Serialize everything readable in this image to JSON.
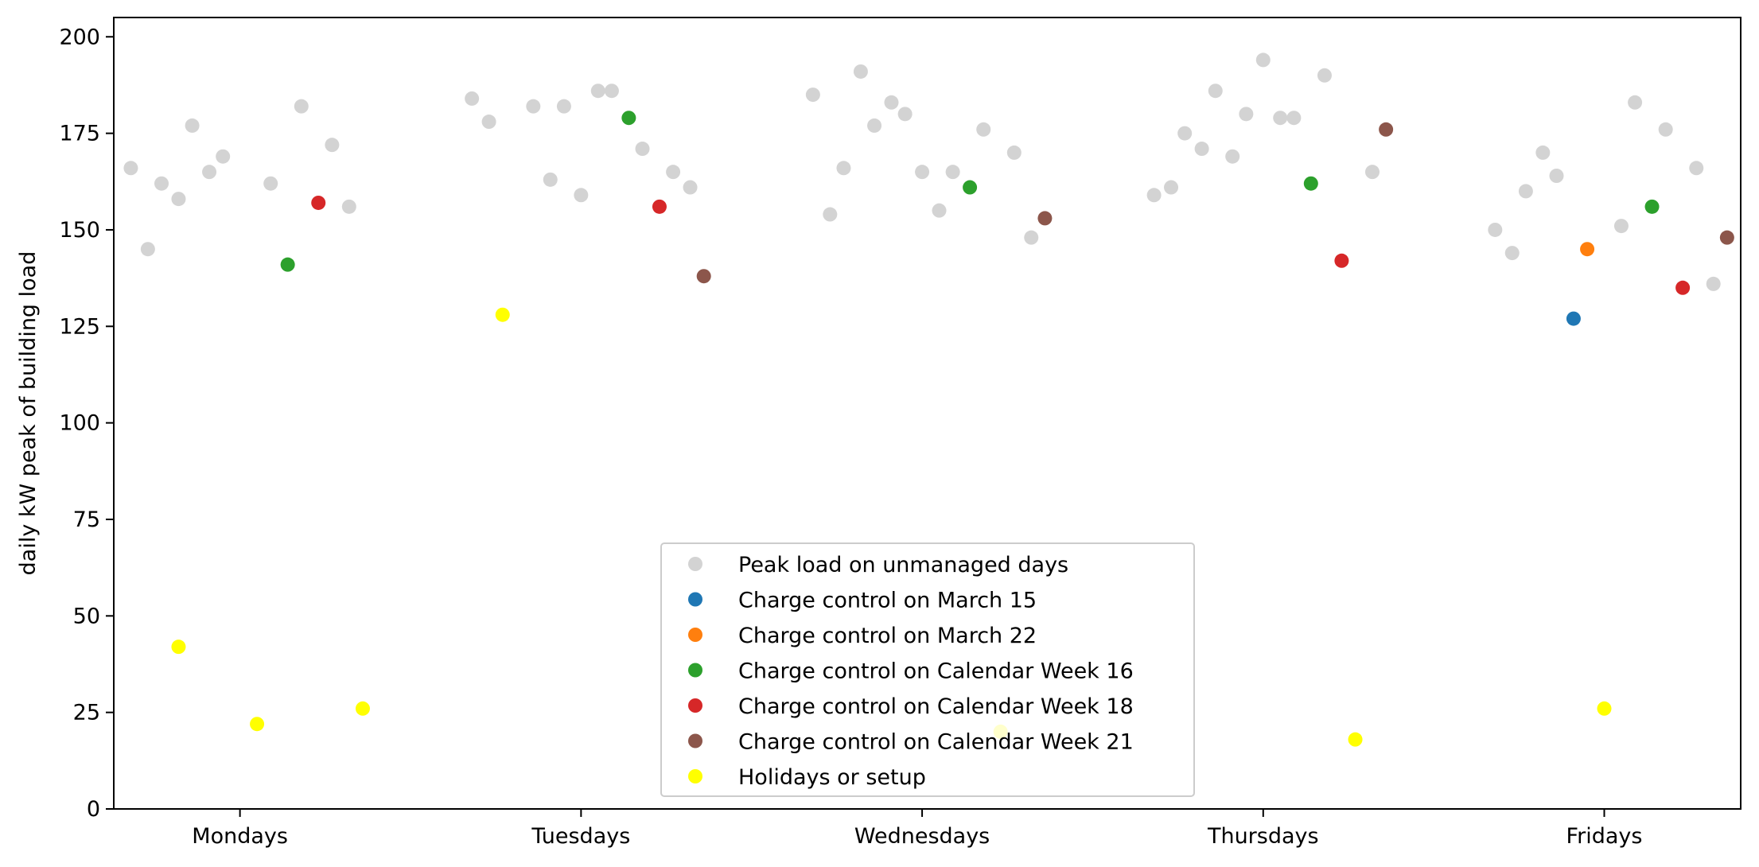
{
  "chart_data": {
    "type": "scatter",
    "title": "",
    "xlabel": "",
    "ylabel": "daily kW peak of building load",
    "ylim": [
      0,
      205
    ],
    "yticks": [
      0,
      25,
      50,
      75,
      100,
      125,
      150,
      175,
      200
    ],
    "categories": [
      "Mondays",
      "Tuesdays",
      "Wednesdays",
      "Thursdays",
      "Fridays"
    ],
    "xlim": [
      -0.37,
      4.4
    ],
    "grid": false,
    "legend_position": "bottom-center",
    "series": [
      {
        "name": "Peak load on unmanaged days",
        "color": "#d3d3d3",
        "points": [
          [
            -0.32,
            166
          ],
          [
            -0.27,
            145
          ],
          [
            -0.23,
            162
          ],
          [
            -0.18,
            158
          ],
          [
            -0.14,
            177
          ],
          [
            -0.09,
            165
          ],
          [
            -0.05,
            169
          ],
          [
            0.09,
            162
          ],
          [
            0.18,
            182
          ],
          [
            0.27,
            172
          ],
          [
            0.32,
            156
          ],
          [
            0.68,
            184
          ],
          [
            0.73,
            178
          ],
          [
            0.86,
            182
          ],
          [
            0.91,
            163
          ],
          [
            0.95,
            182
          ],
          [
            1.0,
            159
          ],
          [
            1.05,
            186
          ],
          [
            1.09,
            186
          ],
          [
            1.18,
            171
          ],
          [
            1.27,
            165
          ],
          [
            1.32,
            161
          ],
          [
            1.68,
            185
          ],
          [
            1.73,
            154
          ],
          [
            1.77,
            166
          ],
          [
            1.82,
            191
          ],
          [
            1.86,
            177
          ],
          [
            1.91,
            183
          ],
          [
            1.95,
            180
          ],
          [
            2.0,
            165
          ],
          [
            2.05,
            155
          ],
          [
            2.09,
            165
          ],
          [
            2.18,
            176
          ],
          [
            2.27,
            170
          ],
          [
            2.32,
            148
          ],
          [
            2.68,
            159
          ],
          [
            2.73,
            161
          ],
          [
            2.77,
            175
          ],
          [
            2.82,
            171
          ],
          [
            2.86,
            186
          ],
          [
            2.91,
            169
          ],
          [
            2.95,
            180
          ],
          [
            3.0,
            194
          ],
          [
            3.05,
            179
          ],
          [
            3.09,
            179
          ],
          [
            3.18,
            190
          ],
          [
            3.32,
            165
          ],
          [
            3.68,
            150
          ],
          [
            3.73,
            144
          ],
          [
            3.77,
            160
          ],
          [
            3.82,
            170
          ],
          [
            3.86,
            164
          ],
          [
            4.05,
            151
          ],
          [
            4.09,
            183
          ],
          [
            4.18,
            176
          ],
          [
            4.27,
            166
          ],
          [
            4.32,
            136
          ]
        ]
      },
      {
        "name": "Charge control on March 15",
        "color": "#1f77b4",
        "points": [
          [
            3.91,
            127
          ]
        ]
      },
      {
        "name": "Charge control on March 22",
        "color": "#ff7f0e",
        "points": [
          [
            3.95,
            145
          ]
        ]
      },
      {
        "name": "Charge control on Calendar Week 16",
        "color": "#2ca02c",
        "points": [
          [
            0.14,
            141
          ],
          [
            1.14,
            179
          ],
          [
            2.14,
            161
          ],
          [
            3.14,
            162
          ],
          [
            4.14,
            156
          ]
        ]
      },
      {
        "name": "Charge control on Calendar Week 18",
        "color": "#d62728",
        "points": [
          [
            0.23,
            157
          ],
          [
            1.23,
            156
          ],
          [
            3.23,
            142
          ],
          [
            4.23,
            135
          ]
        ]
      },
      {
        "name": "Charge control on Calendar Week 21",
        "color": "#8c564b",
        "points": [
          [
            1.36,
            138
          ],
          [
            2.36,
            153
          ],
          [
            3.36,
            176
          ],
          [
            4.36,
            148
          ]
        ]
      },
      {
        "name": "Holidays or setup",
        "color": "#ffff00",
        "points": [
          [
            -0.18,
            42
          ],
          [
            0.05,
            22
          ],
          [
            0.36,
            26
          ],
          [
            0.77,
            128
          ],
          [
            2.23,
            20
          ],
          [
            3.27,
            18
          ],
          [
            4.0,
            26
          ]
        ]
      }
    ]
  }
}
